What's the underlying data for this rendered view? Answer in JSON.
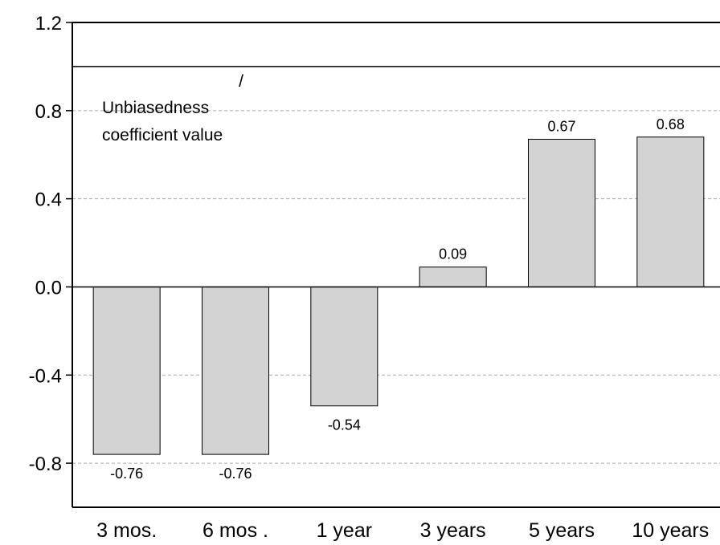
{
  "chart_data": {
    "type": "bar",
    "categories": [
      "3 mos.",
      "6 mos .",
      "1 year",
      "3 years",
      "5 years",
      "10 years"
    ],
    "values": [
      -0.76,
      -0.76,
      -0.54,
      0.09,
      0.67,
      0.68
    ],
    "data_labels": [
      "-0.76",
      "-0.76",
      "-0.54",
      "0.09",
      "0.67",
      "0.68"
    ],
    "ylim": [
      -1.0,
      1.2
    ],
    "yticks": [
      1.2,
      0.8,
      0.4,
      0.0,
      -0.4,
      -0.8
    ],
    "ytick_labels": [
      "1.2",
      "0.8",
      "0.4",
      "0.0",
      "-0.4",
      "-0.8"
    ],
    "reference_line": {
      "value": 1.0
    },
    "annotation": {
      "line1": "Unbiasedness",
      "line2": "coefficient value",
      "arrow": "/"
    },
    "grid": "horizontal dashed",
    "colors": {
      "bar_fill": "#d3d3d3",
      "bar_stroke": "#000000",
      "grid": "#aaaaaa",
      "axis": "#000000"
    }
  }
}
